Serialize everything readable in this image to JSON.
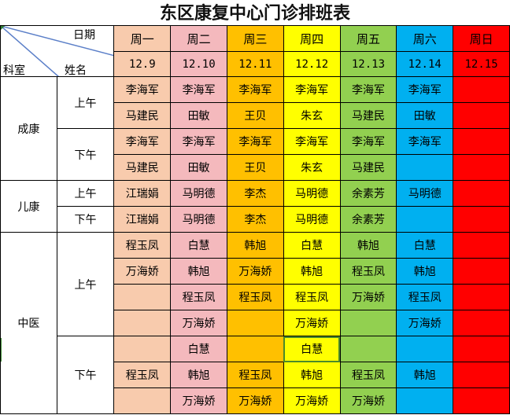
{
  "title": "东区康复中心门诊排班表",
  "corner": {
    "date_label": "日期",
    "dept_label": "科室",
    "name_label": "姓名"
  },
  "days": [
    {
      "weekday": "周一",
      "date": "12.9",
      "color": "#F8CBAD"
    },
    {
      "weekday": "周二",
      "date": "12.10",
      "color": "#F4B9BD"
    },
    {
      "weekday": "周三",
      "date": "12.11",
      "color": "#FFC000"
    },
    {
      "weekday": "周四",
      "date": "12.12",
      "color": "#FFFF00"
    },
    {
      "weekday": "周五",
      "date": "12.13",
      "color": "#92D050"
    },
    {
      "weekday": "周六",
      "date": "12.14",
      "color": "#00B0F0"
    },
    {
      "weekday": "周日",
      "date": "12.15",
      "color": "#FF0000"
    }
  ],
  "departments": [
    {
      "name": "成康",
      "shifts": [
        {
          "name": "上午",
          "rows": [
            [
              "李海军",
              "李海军",
              "李海军",
              "李海军",
              "李海军",
              "李海军",
              ""
            ],
            [
              "马建民",
              "田敏",
              "王贝",
              "朱玄",
              "马建民",
              "田敏",
              ""
            ]
          ]
        },
        {
          "name": "下午",
          "rows": [
            [
              "李海军",
              "李海军",
              "李海军",
              "李海军",
              "李海军",
              "李海军",
              ""
            ],
            [
              "马建民",
              "田敏",
              "王贝",
              "朱玄",
              "马建民",
              "",
              ""
            ]
          ]
        }
      ]
    },
    {
      "name": "儿康",
      "shifts": [
        {
          "name": "上午",
          "rows": [
            [
              "江瑞娟",
              "马明德",
              "李杰",
              "马明德",
              "余素芳",
              "马明德",
              ""
            ]
          ]
        },
        {
          "name": "下午",
          "rows": [
            [
              "江瑞娟",
              "马明德",
              "李杰",
              "马明德",
              "余素芳",
              "",
              ""
            ]
          ]
        }
      ]
    },
    {
      "name": "中医",
      "shifts": [
        {
          "name": "上午",
          "rows": [
            [
              "程玉凤",
              "白慧",
              "韩旭",
              "白慧",
              "韩旭",
              "白慧",
              ""
            ],
            [
              "万海娇",
              "韩旭",
              "万海娇",
              "韩旭",
              "程玉凤",
              "韩旭",
              ""
            ],
            [
              "",
              "程玉凤",
              "程玉凤",
              "程玉凤",
              "万海娇",
              "程玉凤",
              ""
            ],
            [
              "",
              "万海娇",
              "",
              "万海娇",
              "",
              "万海娇",
              ""
            ]
          ]
        },
        {
          "name": "下午",
          "rows": [
            [
              "",
              "白慧",
              "",
              "白慧",
              "",
              "",
              ""
            ],
            [
              "程玉凤",
              "韩旭",
              "程玉凤",
              "韩旭",
              "程玉凤",
              "韩旭",
              ""
            ],
            [
              "",
              "万海娇",
              "万海娇",
              "万海娇",
              "万海娇",
              "",
              ""
            ]
          ]
        }
      ]
    }
  ]
}
